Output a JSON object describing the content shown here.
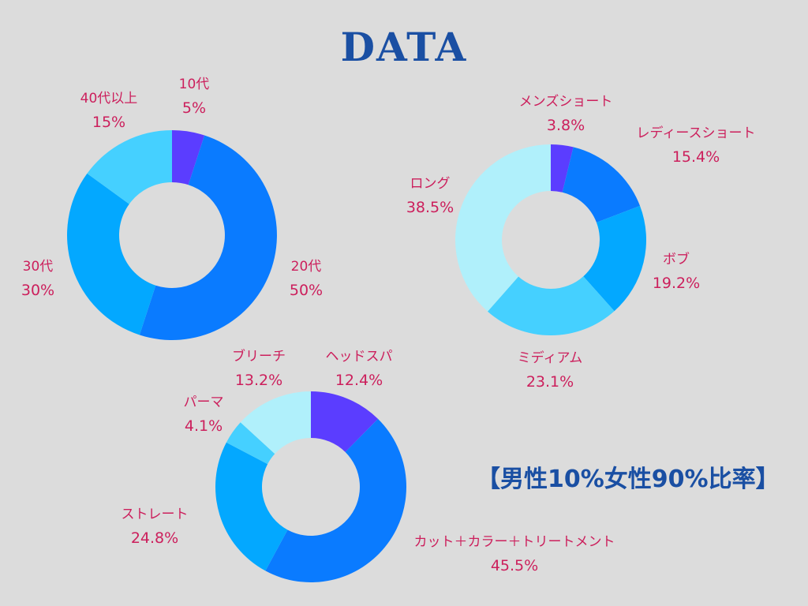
{
  "page": {
    "title": "DATA"
  },
  "note": "【男性10%女性90%比率】",
  "chart_data": [
    {
      "type": "pie",
      "donut": true,
      "title": "",
      "slices": [
        {
          "label": "10代",
          "value_label": "5%",
          "value": 5,
          "color": "#5b3dff"
        },
        {
          "label": "20代",
          "value_label": "50%",
          "value": 50,
          "color": "#0a7bff"
        },
        {
          "label": "30代",
          "value_label": "30%",
          "value": 30,
          "color": "#03a8ff"
        },
        {
          "label": "40代以上",
          "value_label": "15%",
          "value": 15,
          "color": "#45d0ff"
        }
      ]
    },
    {
      "type": "pie",
      "donut": true,
      "title": "",
      "slices": [
        {
          "label": "メンズショート",
          "value_label": "3.8%",
          "value": 3.8,
          "color": "#5b3dff"
        },
        {
          "label": "レディースショート",
          "value_label": "15.4%",
          "value": 15.4,
          "color": "#0a7bff"
        },
        {
          "label": "ボブ",
          "value_label": "19.2%",
          "value": 19.2,
          "color": "#03a8ff"
        },
        {
          "label": "ミディアム",
          "value_label": "23.1%",
          "value": 23.1,
          "color": "#45d0ff"
        },
        {
          "label": "ロング",
          "value_label": "38.5%",
          "value": 38.5,
          "color": "#b0f0fb"
        }
      ]
    },
    {
      "type": "pie",
      "donut": true,
      "title": "",
      "slices": [
        {
          "label": "ヘッドスパ",
          "value_label": "12.4%",
          "value": 12.4,
          "color": "#5b3dff"
        },
        {
          "label": "カット＋カラー＋トリートメント",
          "value_label": "45.5%",
          "value": 45.5,
          "color": "#0a7bff"
        },
        {
          "label": "ストレート",
          "value_label": "24.8%",
          "value": 24.8,
          "color": "#03a8ff"
        },
        {
          "label": "パーマ",
          "value_label": "4.1%",
          "value": 4.1,
          "color": "#45d0ff"
        },
        {
          "label": "ブリーチ",
          "value_label": "13.2%",
          "value": 13.2,
          "color": "#b0f0fb"
        }
      ]
    }
  ]
}
